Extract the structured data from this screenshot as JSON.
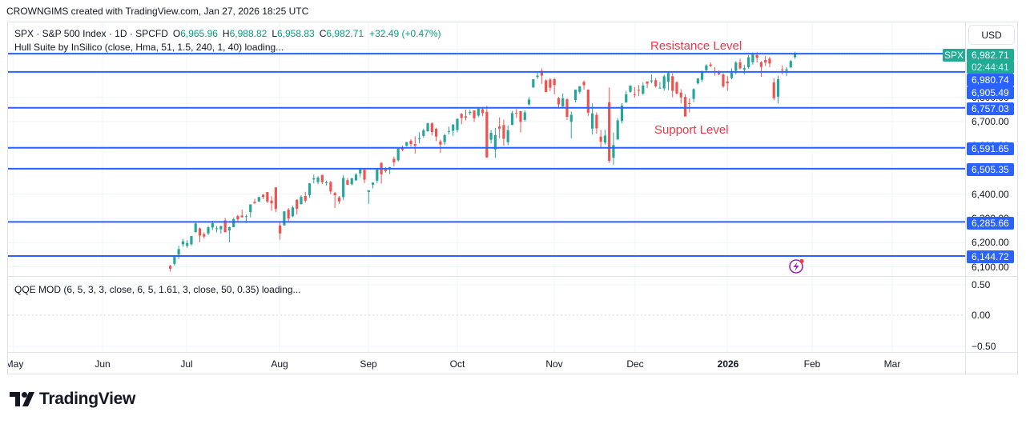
{
  "header": {
    "attribution": "CROWNGIMS created with TradingView.com, Jan 27, 2026 18:25 UTC"
  },
  "legend": {
    "symbol": "SPX · S&P 500 Index · 1D · SPCFD",
    "open_label": "O",
    "open": "6,965.96",
    "high_label": "H",
    "high": "6,988.82",
    "low_label": "L",
    "low": "6,958.83",
    "close_label": "C",
    "close": "6,982.71",
    "change": "+32.49 (+0.47%)",
    "indicator_hull": "Hull Suite by InSilico (close, Hma, 51, 1.5, 240, 1, 40) loading..."
  },
  "annotations": {
    "resistance": "Resistance Level",
    "support": "Support Level"
  },
  "price_axis": {
    "currency": "USD",
    "ticks": [
      "6,800.00",
      "6,700.00",
      "6,600.00",
      "6,400.00",
      "6,300.00",
      "6,200.00",
      "6,100.00"
    ],
    "current": {
      "symbol": "SPX",
      "price": "6,982.71",
      "countdown": "02:44:41"
    },
    "level_labels": [
      "6,980.74",
      "6,905.49",
      "6,757.03",
      "6,591.65",
      "6,505.35",
      "6,285.66",
      "6,144.72"
    ]
  },
  "qqe": {
    "label": "QQE MOD (6, 5, 3, 3, close, 6, 5, 1.61, 3, close, 50, 0.35) loading...",
    "ticks": [
      "0.50",
      "0.00",
      "−0.50"
    ]
  },
  "time_axis": {
    "labels": [
      "May",
      "Jun",
      "Jul",
      "Aug",
      "Sep",
      "Oct",
      "Nov",
      "Dec",
      "2026",
      "Feb",
      "Mar"
    ]
  },
  "footer": {
    "logo_text": "TradingView"
  },
  "icons": {
    "alert": "lightning-alert-icon"
  },
  "colors": {
    "up": "#26a69a",
    "down": "#ef5350",
    "level_line": "#2962ff",
    "annotation": "#f23645",
    "current_price": "#22ab94",
    "alert_icon": "#9c27b0"
  },
  "chart_data": {
    "type": "candlestick",
    "title": "SPX · S&P 500 Index · 1D · SPCFD",
    "xlabel": "",
    "ylabel": "USD",
    "ylim": [
      6080,
      7000
    ],
    "grid": true,
    "annotations": [
      {
        "text": "Resistance Level",
        "near_price": 7010
      },
      {
        "text": "Support Level",
        "near_price": 6660
      }
    ],
    "horizontal_levels": [
      6980.74,
      6905.49,
      6757.03,
      6591.65,
      6505.35,
      6285.66,
      6144.72
    ],
    "current_price": 6982.71,
    "x": [
      "2025-06-25",
      "2025-06-26",
      "2025-06-27",
      "2025-06-30",
      "2025-07-01",
      "2025-07-02",
      "2025-07-03",
      "2025-07-07",
      "2025-07-08",
      "2025-07-09",
      "2025-07-10",
      "2025-07-11",
      "2025-07-14",
      "2025-07-15",
      "2025-07-16",
      "2025-07-17",
      "2025-07-18",
      "2025-07-21",
      "2025-07-22",
      "2025-07-23",
      "2025-07-24",
      "2025-07-25",
      "2025-07-28",
      "2025-07-29",
      "2025-07-30",
      "2025-07-31",
      "2025-08-01",
      "2025-08-04",
      "2025-08-05",
      "2025-08-06",
      "2025-08-07",
      "2025-08-08",
      "2025-08-11",
      "2025-08-12",
      "2025-08-13",
      "2025-08-14",
      "2025-08-15",
      "2025-08-18",
      "2025-08-19",
      "2025-08-20",
      "2025-08-21",
      "2025-08-22",
      "2025-08-25",
      "2025-08-26",
      "2025-08-27",
      "2025-08-28",
      "2025-08-29",
      "2025-09-02",
      "2025-09-03",
      "2025-09-04",
      "2025-09-05",
      "2025-09-08",
      "2025-09-09",
      "2025-09-10",
      "2025-09-11",
      "2025-09-12",
      "2025-09-15",
      "2025-09-16",
      "2025-09-17",
      "2025-09-18",
      "2025-09-19",
      "2025-09-22",
      "2025-09-23",
      "2025-09-24",
      "2025-09-25",
      "2025-09-26",
      "2025-09-29",
      "2025-09-30",
      "2025-10-01",
      "2025-10-02",
      "2025-10-03",
      "2025-10-06",
      "2025-10-07",
      "2025-10-08",
      "2025-10-09",
      "2025-10-10",
      "2025-10-13",
      "2025-10-14",
      "2025-10-15",
      "2025-10-16",
      "2025-10-17",
      "2025-10-20",
      "2025-10-21",
      "2025-10-22",
      "2025-10-23",
      "2025-10-24",
      "2025-10-27",
      "2025-10-28",
      "2025-10-29",
      "2025-10-30",
      "2025-10-31",
      "2025-11-03",
      "2025-11-04",
      "2025-11-05",
      "2025-11-06",
      "2025-11-07",
      "2025-11-10",
      "2025-11-11",
      "2025-11-12",
      "2025-11-13",
      "2025-11-14",
      "2025-11-17",
      "2025-11-18",
      "2025-11-19",
      "2025-11-20",
      "2025-11-21",
      "2025-11-24",
      "2025-11-25",
      "2025-11-26",
      "2025-11-28",
      "2025-12-01",
      "2025-12-02",
      "2025-12-03",
      "2025-12-04",
      "2025-12-05",
      "2025-12-08",
      "2025-12-09",
      "2025-12-10",
      "2025-12-11",
      "2025-12-12",
      "2025-12-15",
      "2025-12-16",
      "2025-12-17",
      "2025-12-18",
      "2025-12-19",
      "2025-12-22",
      "2025-12-23",
      "2025-12-24",
      "2025-12-26",
      "2025-12-29",
      "2025-12-30",
      "2025-12-31",
      "2026-01-02",
      "2026-01-05",
      "2026-01-06",
      "2026-01-07",
      "2026-01-08",
      "2026-01-09",
      "2026-01-12",
      "2026-01-13",
      "2026-01-14",
      "2026-01-15",
      "2026-01-16",
      "2026-01-20",
      "2026-01-21",
      "2026-01-22",
      "2026-01-23",
      "2026-01-26",
      "2026-01-27"
    ],
    "ohlc_fields": [
      "open",
      "high",
      "low",
      "close"
    ],
    "ohlc": [
      [
        6104,
        6108,
        6080,
        6092
      ],
      [
        6112,
        6146,
        6105,
        6141
      ],
      [
        6150,
        6187,
        6132,
        6173
      ],
      [
        6193,
        6215,
        6183,
        6205
      ],
      [
        6187,
        6210,
        6178,
        6198
      ],
      [
        6193,
        6228,
        6188,
        6227
      ],
      [
        6244,
        6285,
        6240,
        6279
      ],
      [
        6259,
        6262,
        6202,
        6229
      ],
      [
        6235,
        6242,
        6217,
        6225
      ],
      [
        6238,
        6269,
        6231,
        6263
      ],
      [
        6262,
        6290,
        6251,
        6280
      ],
      [
        6256,
        6269,
        6242,
        6259
      ],
      [
        6255,
        6270,
        6237,
        6268
      ],
      [
        6292,
        6302,
        6242,
        6243
      ],
      [
        6250,
        6266,
        6201,
        6264
      ],
      [
        6264,
        6304,
        6263,
        6297
      ],
      [
        6310,
        6315,
        6286,
        6296
      ],
      [
        6312,
        6336,
        6303,
        6305
      ],
      [
        6307,
        6316,
        6281,
        6309
      ],
      [
        6326,
        6358,
        6304,
        6358
      ],
      [
        6368,
        6381,
        6360,
        6363
      ],
      [
        6370,
        6390,
        6368,
        6388
      ],
      [
        6398,
        6401,
        6380,
        6389
      ],
      [
        6409,
        6409,
        6363,
        6370
      ],
      [
        6374,
        6392,
        6332,
        6362
      ],
      [
        6428,
        6428,
        6326,
        6339
      ],
      [
        6271,
        6288,
        6212,
        6238
      ],
      [
        6271,
        6330,
        6271,
        6329
      ],
      [
        6336,
        6343,
        6287,
        6299
      ],
      [
        6309,
        6352,
        6305,
        6345
      ],
      [
        6377,
        6379,
        6316,
        6340
      ],
      [
        6359,
        6395,
        6357,
        6389
      ],
      [
        6393,
        6410,
        6365,
        6373
      ],
      [
        6396,
        6446,
        6385,
        6445
      ],
      [
        6461,
        6481,
        6445,
        6466
      ],
      [
        6450,
        6474,
        6441,
        6469
      ],
      [
        6479,
        6481,
        6441,
        6450
      ],
      [
        6447,
        6456,
        6435,
        6449
      ],
      [
        6450,
        6456,
        6400,
        6411
      ],
      [
        6405,
        6410,
        6343,
        6396
      ],
      [
        6387,
        6393,
        6360,
        6370
      ],
      [
        6388,
        6479,
        6375,
        6467
      ],
      [
        6458,
        6467,
        6438,
        6439
      ],
      [
        6441,
        6467,
        6436,
        6466
      ],
      [
        6457,
        6487,
        6456,
        6481
      ],
      [
        6486,
        6508,
        6470,
        6502
      ],
      [
        6501,
        6502,
        6446,
        6460
      ],
      [
        6409,
        6416,
        6360,
        6416
      ],
      [
        6439,
        6449,
        6424,
        6448
      ],
      [
        6456,
        6503,
        6446,
        6502
      ],
      [
        6529,
        6533,
        6444,
        6482
      ],
      [
        6502,
        6511,
        6489,
        6495
      ],
      [
        6503,
        6513,
        6483,
        6512
      ],
      [
        6546,
        6555,
        6515,
        6532
      ],
      [
        6540,
        6592,
        6535,
        6588
      ],
      [
        6590,
        6601,
        6577,
        6584
      ],
      [
        6600,
        6616,
        6597,
        6615
      ],
      [
        6621,
        6627,
        6597,
        6607
      ],
      [
        6607,
        6639,
        6568,
        6600
      ],
      [
        6630,
        6656,
        6610,
        6631
      ],
      [
        6641,
        6671,
        6633,
        6664
      ],
      [
        6660,
        6696,
        6658,
        6693
      ],
      [
        6693,
        6697,
        6642,
        6657
      ],
      [
        6670,
        6675,
        6619,
        6638
      ],
      [
        6618,
        6626,
        6570,
        6605
      ],
      [
        6615,
        6650,
        6603,
        6644
      ],
      [
        6661,
        6679,
        6647,
        6661
      ],
      [
        6662,
        6689,
        6641,
        6688
      ],
      [
        6665,
        6714,
        6656,
        6711
      ],
      [
        6732,
        6735,
        6689,
        6715
      ],
      [
        6722,
        6750,
        6705,
        6716
      ],
      [
        6735,
        6749,
        6726,
        6740
      ],
      [
        6746,
        6747,
        6699,
        6714
      ],
      [
        6725,
        6754,
        6718,
        6753
      ],
      [
        6751,
        6759,
        6723,
        6735
      ],
      [
        6740,
        6765,
        6550,
        6552
      ],
      [
        6625,
        6665,
        6610,
        6654
      ],
      [
        6585,
        6674,
        6550,
        6644
      ],
      [
        6680,
        6718,
        6630,
        6671
      ],
      [
        6686,
        6708,
        6600,
        6629
      ],
      [
        6615,
        6684,
        6602,
        6664
      ],
      [
        6686,
        6744,
        6686,
        6735
      ],
      [
        6736,
        6752,
        6715,
        6735
      ],
      [
        6743,
        6744,
        6655,
        6699
      ],
      [
        6707,
        6747,
        6700,
        6738
      ],
      [
        6771,
        6801,
        6767,
        6791
      ],
      [
        6841,
        6876,
        6840,
        6875
      ],
      [
        6884,
        6902,
        6876,
        6890
      ],
      [
        6910,
        6920,
        6856,
        6890
      ],
      [
        6870,
        6875,
        6822,
        6822
      ],
      [
        6874,
        6880,
        6826,
        6840
      ],
      [
        6875,
        6881,
        6813,
        6851
      ],
      [
        6797,
        6802,
        6757,
        6771
      ],
      [
        6762,
        6817,
        6762,
        6796
      ],
      [
        6792,
        6797,
        6707,
        6720
      ],
      [
        6699,
        6741,
        6631,
        6728
      ],
      [
        6789,
        6833,
        6779,
        6832
      ],
      [
        6823,
        6847,
        6815,
        6846
      ],
      [
        6864,
        6870,
        6832,
        6850
      ],
      [
        6832,
        6833,
        6724,
        6737
      ],
      [
        6671,
        6775,
        6646,
        6734
      ],
      [
        6728,
        6738,
        6650,
        6672
      ],
      [
        6638,
        6666,
        6589,
        6617
      ],
      [
        6614,
        6666,
        6605,
        6642
      ],
      [
        6780,
        6841,
        6530,
        6538
      ],
      [
        6551,
        6655,
        6521,
        6603
      ],
      [
        6626,
        6713,
        6626,
        6705
      ],
      [
        6703,
        6776,
        6693,
        6766
      ],
      [
        6779,
        6827,
        6778,
        6813
      ],
      [
        6823,
        6849,
        6819,
        6849
      ],
      [
        6813,
        6843,
        6799,
        6812
      ],
      [
        6831,
        6851,
        6806,
        6829
      ],
      [
        6815,
        6862,
        6810,
        6849
      ],
      [
        6866,
        6867,
        6839,
        6857
      ],
      [
        6866,
        6895,
        6858,
        6870
      ],
      [
        6871,
        6880,
        6841,
        6846
      ],
      [
        6840,
        6864,
        6839,
        6840
      ],
      [
        6837,
        6894,
        6828,
        6887
      ],
      [
        6865,
        6903,
        6830,
        6901
      ],
      [
        6887,
        6900,
        6801,
        6827
      ],
      [
        6863,
        6866,
        6812,
        6816
      ],
      [
        6820,
        6834,
        6775,
        6800
      ],
      [
        6802,
        6813,
        6721,
        6721
      ],
      [
        6776,
        6796,
        6738,
        6775
      ],
      [
        6794,
        6838,
        6780,
        6834
      ],
      [
        6858,
        6880,
        6853,
        6878
      ],
      [
        6873,
        6910,
        6865,
        6909
      ],
      [
        6912,
        6937,
        6908,
        6932
      ],
      [
        6936,
        6945,
        6924,
        6930
      ],
      [
        6907,
        6925,
        6890,
        6905
      ],
      [
        6902,
        6912,
        6892,
        6896
      ],
      [
        6895,
        6900,
        6840,
        6845
      ],
      [
        6866,
        6888,
        6828,
        6858
      ],
      [
        6880,
        6920,
        6875,
        6902
      ],
      [
        6910,
        6950,
        6895,
        6944
      ],
      [
        6945,
        6960,
        6915,
        6920
      ],
      [
        6915,
        6935,
        6895,
        6921
      ],
      [
        6925,
        6975,
        6918,
        6966
      ],
      [
        6945,
        6986,
        6935,
        6977
      ],
      [
        6975,
        6987,
        6945,
        6963
      ],
      [
        6945,
        6950,
        6885,
        6926
      ],
      [
        6955,
        6972,
        6930,
        6944
      ],
      [
        6960,
        6968,
        6925,
        6940
      ],
      [
        6862,
        6880,
        6789,
        6797
      ],
      [
        6803,
        6890,
        6775,
        6875
      ],
      [
        6915,
        6932,
        6895,
        6913
      ],
      [
        6910,
        6925,
        6888,
        6916
      ],
      [
        6925,
        6955,
        6920,
        6950
      ],
      [
        6965.96,
        6988.82,
        6958.83,
        6982.71
      ]
    ],
    "y_ticks": [
      6100,
      6200,
      6300,
      6400,
      6500,
      6600,
      6700,
      6800,
      6900,
      7000
    ],
    "x_tick_labels": [
      "May",
      "Jun",
      "Jul",
      "Aug",
      "Sep",
      "Oct",
      "Nov",
      "Dec",
      "2026",
      "Feb",
      "Mar"
    ],
    "indicator_pane": {
      "name": "QQE MOD",
      "y_ticks": [
        0.5,
        0.0,
        -0.5
      ],
      "status": "loading"
    }
  }
}
